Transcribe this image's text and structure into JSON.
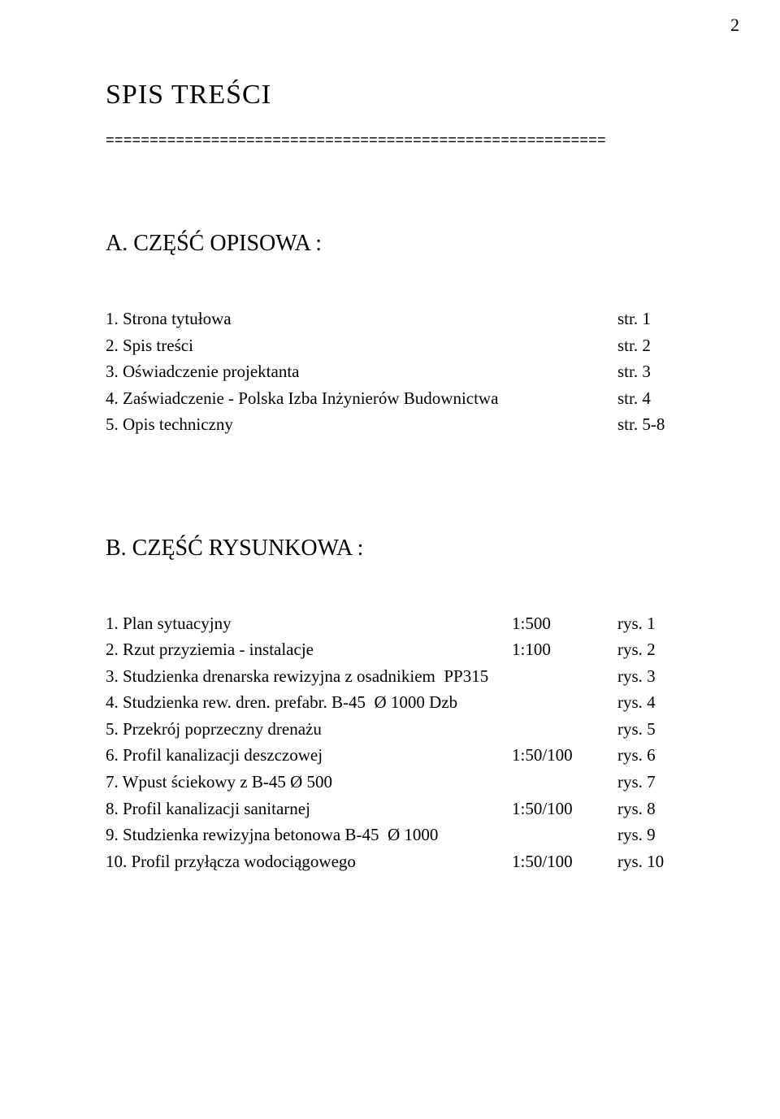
{
  "page_number": "2",
  "title": "SPIS    TREŚCI",
  "divider": "=========================================================",
  "sectionA": {
    "title": "A. CZĘŚĆ   OPISOWA    :",
    "items": [
      {
        "label": "1. Strona tytułowa",
        "mid": "",
        "right": "str. 1"
      },
      {
        "label": "2. Spis treści",
        "mid": "",
        "right": "str. 2"
      },
      {
        "label": "3. Oświadczenie projektanta",
        "mid": "",
        "right": "str. 3"
      },
      {
        "label": "4. Zaświadczenie - Polska Izba Inżynierów Budownictwa",
        "mid": "",
        "right": "str. 4"
      },
      {
        "label": "5. Opis techniczny",
        "mid": "",
        "right": "str. 5-8"
      }
    ]
  },
  "sectionB": {
    "title": "B. CZĘŚĆ   RYSUNKOWA :",
    "items": [
      {
        "label": "1. Plan sytuacyjny",
        "mid": "1:500",
        "right": "rys. 1"
      },
      {
        "label": "2. Rzut przyziemia - instalacje",
        "mid": "1:100",
        "right": "rys. 2"
      },
      {
        "label": "3. Studzienka drenarska rewizyjna z osadnikiem  PP315",
        "mid": "",
        "right": "rys. 3"
      },
      {
        "label": "4. Studzienka rew. dren. prefabr. B-45  Ø 1000 Dzb",
        "mid": "",
        "right": "rys. 4"
      },
      {
        "label": "5. Przekrój poprzeczny drenażu",
        "mid": "",
        "right": "rys. 5"
      },
      {
        "label": "6. Profil kanalizacji deszczowej",
        "mid": "1:50/100",
        "right": "rys. 6"
      },
      {
        "label": "7. Wpust ściekowy z B-45 Ø 500",
        "mid": "",
        "right": "rys. 7"
      },
      {
        "label": "8. Profil kanalizacji sanitarnej",
        "mid": "1:50/100",
        "right": "rys. 8"
      },
      {
        "label": "9. Studzienka rewizyjna betonowa B-45  Ø 1000",
        "mid": "",
        "right": "rys. 9"
      },
      {
        "label": "10. Profil przyłącza wodociągowego",
        "mid": "1:50/100",
        "right": "rys. 10"
      }
    ]
  }
}
